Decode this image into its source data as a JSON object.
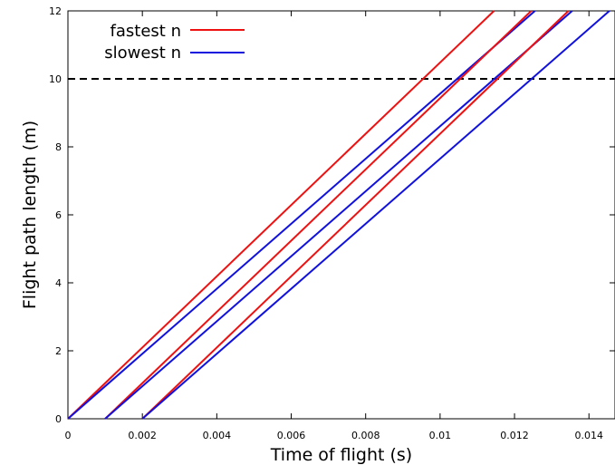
{
  "chart_data": {
    "type": "line",
    "xlabel": "Time of flight (s)",
    "ylabel": "Flight path length (m)",
    "xlim": [
      0,
      0.0147
    ],
    "ylim": [
      0,
      12
    ],
    "xticks": [
      "0",
      "0.002",
      "0.004",
      "0.006",
      "0.008",
      "0.01",
      "0.012",
      "0.014"
    ],
    "xtick_values": [
      0,
      0.002,
      0.004,
      0.006,
      0.008,
      0.01,
      0.012,
      0.014
    ],
    "yticks": [
      "0",
      "2",
      "4",
      "6",
      "8",
      "10",
      "12"
    ],
    "ytick_values": [
      0,
      2,
      4,
      6,
      8,
      10,
      12
    ],
    "grid": false,
    "legend_position": "top-left",
    "reference_line": {
      "y": 10,
      "style": "dashed",
      "color": "#000000"
    },
    "series": [
      {
        "name": "fastest n",
        "color": "#ee1111",
        "x": [
          0,
          0.01145
        ],
        "y": [
          0,
          12
        ],
        "legend": true
      },
      {
        "name": "slowest n",
        "color": "#1111dd",
        "x": [
          0,
          0.01255
        ],
        "y": [
          0,
          12
        ],
        "legend": true
      },
      {
        "color": "#ee1111",
        "x": [
          0.001,
          0.01245
        ],
        "y": [
          0,
          12
        ],
        "legend": false
      },
      {
        "color": "#1111dd",
        "x": [
          0.001,
          0.01355
        ],
        "y": [
          0,
          12
        ],
        "legend": false
      },
      {
        "color": "#ee1111",
        "x": [
          0.002,
          0.01345
        ],
        "y": [
          0,
          12
        ],
        "legend": false
      },
      {
        "color": "#1111dd",
        "x": [
          0.002,
          0.01455
        ],
        "y": [
          0,
          12
        ],
        "legend": false
      }
    ]
  }
}
